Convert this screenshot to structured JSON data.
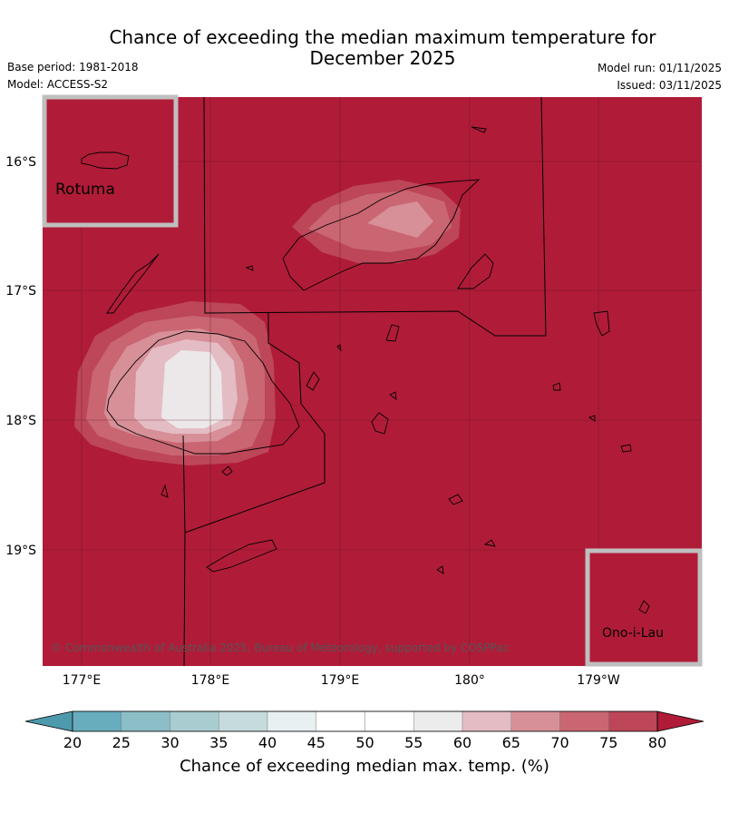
{
  "title": {
    "line1": "Chance of exceeding the median maximum temperature for",
    "line2": "December 2025"
  },
  "meta": {
    "base_period": "Base period: 1981-2018",
    "model": "Model: ACCESS-S2",
    "model_run": "Model run: 01/11/2025",
    "issued": "Issued: 03/11/2025"
  },
  "axes": {
    "lon_labels": [
      "177°E",
      "178°E",
      "179°E",
      "180°",
      "179°W"
    ],
    "lat_labels": [
      "16°S",
      "17°S",
      "18°S",
      "19°S"
    ]
  },
  "insets": {
    "rotuma": "Rotuma",
    "ono_i_lau": "Ono-i-Lau"
  },
  "copyright": "© Commonwealth of Australia 2025, Bureau of Meteorology, supported by COSPPac",
  "colorbar": {
    "ticks": [
      "20",
      "25",
      "30",
      "35",
      "40",
      "45",
      "50",
      "55",
      "60",
      "65",
      "70",
      "75",
      "80"
    ],
    "label": "Chance of exceeding median max. temp. (%)",
    "colors": [
      "#4d9aad",
      "#68adbe",
      "#8bbec7",
      "#a9ccd1",
      "#c6dbde",
      "#e8f0f1",
      "#ffffff",
      "#ffffff",
      "#ececed",
      "#e4bcc3",
      "#d78f98",
      "#c96672",
      "#bd4659",
      "#b01c38"
    ]
  },
  "map": {
    "background_color": "#b01c38"
  }
}
